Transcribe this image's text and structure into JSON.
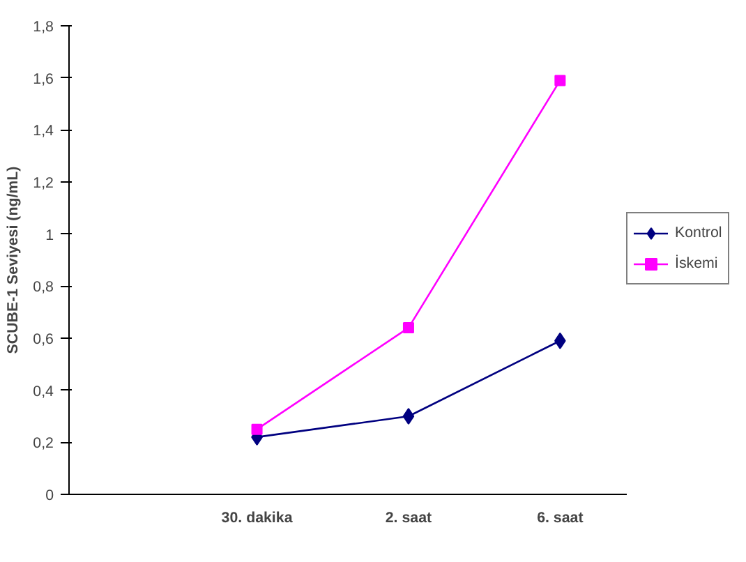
{
  "chart_data": {
    "type": "line",
    "ylabel": "SCUBE-1 Seviyesi (ng/mL)",
    "categories": [
      "30. dakika",
      "2. saat",
      "6. saat"
    ],
    "series": [
      {
        "name": "Kontrol",
        "color": "#000080",
        "marker": "diamond",
        "values": [
          0.22,
          0.3,
          0.59
        ]
      },
      {
        "name": "İskemi",
        "color": "#ff00ff",
        "marker": "square",
        "values": [
          0.25,
          0.64,
          1.59
        ]
      }
    ],
    "ylim": [
      0,
      1.8
    ],
    "yticks": [
      {
        "value": 0,
        "label": "0"
      },
      {
        "value": 0.2,
        "label": "0,2"
      },
      {
        "value": 0.4,
        "label": "0,4"
      },
      {
        "value": 0.6,
        "label": "0,6"
      },
      {
        "value": 0.8,
        "label": "0,8"
      },
      {
        "value": 1,
        "label": "1"
      },
      {
        "value": 1.2,
        "label": "1,2"
      },
      {
        "value": 1.4,
        "label": "1,4"
      },
      {
        "value": 1.6,
        "label": "1,6"
      },
      {
        "value": 1.8,
        "label": "1,8"
      }
    ],
    "grid": false,
    "legend": "right",
    "line_style": "solid"
  }
}
